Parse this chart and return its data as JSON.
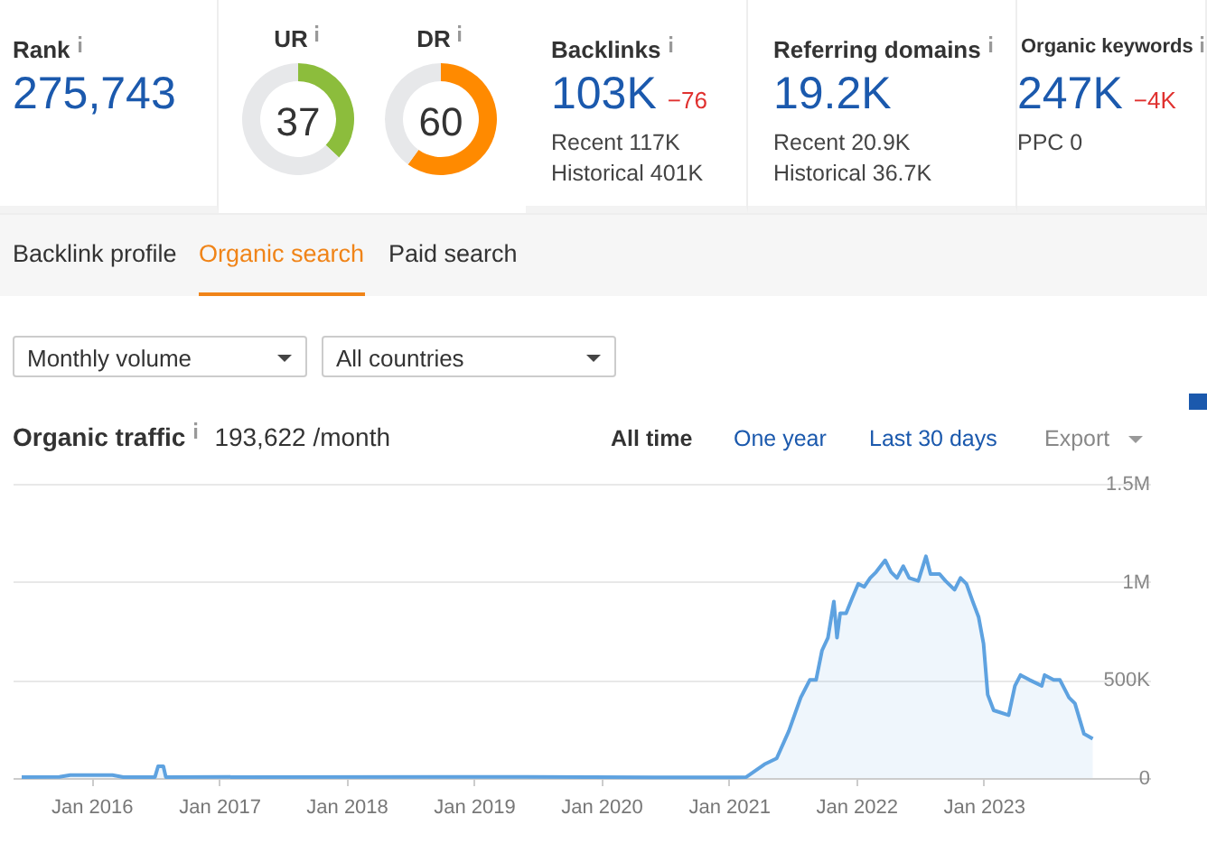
{
  "chart_data": [
    {
      "type": "other",
      "title": "Rank",
      "annotations": [
        "275,743"
      ]
    },
    {
      "type": "donut",
      "title": "UR",
      "categories": [
        null,
        null
      ],
      "values": [
        37,
        63
      ],
      "colors": [
        "#8cbd3c",
        "#e7e8ea"
      ],
      "annotations": [
        "37"
      ]
    },
    {
      "type": "donut",
      "title": "DR",
      "categories": [
        null,
        null
      ],
      "values": [
        60,
        40
      ],
      "colors": [
        "#ff8a00",
        "#e7e8ea"
      ],
      "annotations": [
        "60"
      ]
    },
    {
      "type": "other",
      "title": "Backlinks",
      "annotations": [
        "103K",
        "−76",
        "Recent 117K",
        "Historical 401K"
      ]
    },
    {
      "type": "other",
      "title": "Referring domains",
      "annotations": [
        "19.2K",
        "Recent 20.9K",
        "Historical 36.7K"
      ]
    },
    {
      "type": "other",
      "title": "Organic keywords",
      "annotations": [
        "247K",
        "−4K",
        "PPC 0"
      ]
    },
    {
      "type": "other",
      "annotations": [
        "Backlink profile",
        "Organic search",
        "Paid search",
        "Monthly volume",
        "All countries"
      ]
    },
    {
      "type": "area",
      "title": "Organic traffic",
      "subtitle": "193,622 /month",
      "annotations": [
        "All time",
        "One year",
        "Last 30 days",
        "Export"
      ],
      "x": [
        "2015-06-15",
        "2015-10-01",
        "2015-11-01",
        "2016-03-01",
        "2016-04-01",
        "2016-07-01",
        "2016-07-10",
        "2016-07-25",
        "2016-08-01",
        "2019-06-01",
        "2020-06-01",
        "2021-01-15",
        "2021-02-20",
        "2021-04-13",
        "2021-05-18",
        "2021-06-22",
        "2021-07-26",
        "2021-08-21",
        "2021-09-08",
        "2021-09-25",
        "2021-10-12",
        "2021-10-29",
        "2021-11-07",
        "2021-11-16",
        "2021-12-03",
        "2021-12-20",
        "2022-01-07",
        "2022-01-24",
        "2022-02-10",
        "2022-02-27",
        "2022-03-25",
        "2022-04-11",
        "2022-04-28",
        "2022-05-16",
        "2022-06-02",
        "2022-06-28",
        "2022-07-20",
        "2022-08-02",
        "2022-08-28",
        "2022-09-14",
        "2022-10-10",
        "2022-10-27",
        "2022-11-13",
        "2022-12-01",
        "2022-12-18",
        "2023-01-01",
        "2023-01-13",
        "2023-01-30",
        "2023-03-14",
        "2023-04-01",
        "2023-04-17",
        "2023-05-13",
        "2023-06-17",
        "2023-06-25",
        "2023-07-21",
        "2023-08-08",
        "2023-09-03",
        "2023-09-20",
        "2023-10-16",
        "2023-11-10"
      ],
      "series": [
        {
          "color": "#5ea2e0",
          "values": [
            5000,
            6000,
            15000,
            15000,
            5000,
            5000,
            60000,
            60000,
            5000,
            6000,
            3000,
            3000,
            5000,
            70000,
            100000,
            240000,
            410000,
            500000,
            500000,
            650000,
            715000,
            900000,
            715000,
            840000,
            840000,
            915000,
            990000,
            975000,
            1020000,
            1050000,
            1110000,
            1050000,
            1020000,
            1080000,
            1020000,
            1005000,
            1130000,
            1040000,
            1040000,
            1005000,
            960000,
            1020000,
            990000,
            900000,
            820000,
            685000,
            425000,
            345000,
            320000,
            470000,
            525000,
            500000,
            470000,
            525000,
            500000,
            500000,
            410000,
            380000,
            225000,
            200000
          ]
        }
      ],
      "xlim": [
        "2015-05-20",
        "2024-04-25"
      ],
      "xticks": [
        {
          "value": "2016-01-01",
          "label": "Jan 2016"
        },
        {
          "value": "2017-01-01",
          "label": "Jan 2017"
        },
        {
          "value": "2018-01-01",
          "label": "Jan 2018"
        },
        {
          "value": "2019-01-01",
          "label": "Jan 2019"
        },
        {
          "value": "2020-01-01",
          "label": "Jan 2020"
        },
        {
          "value": "2021-01-01",
          "label": "Jan 2021"
        },
        {
          "value": "2022-01-01",
          "label": "Jan 2022"
        },
        {
          "value": "2023-01-01",
          "label": "Jan 2023"
        }
      ],
      "ylim": [
        0,
        1500000
      ],
      "yticks": [
        {
          "value": 0,
          "label": "0"
        },
        {
          "value": 500000,
          "label": "500K"
        },
        {
          "value": 1000000,
          "label": "1M"
        },
        {
          "value": 1500000,
          "label": "1.5M"
        }
      ],
      "grid": "y"
    }
  ]
}
